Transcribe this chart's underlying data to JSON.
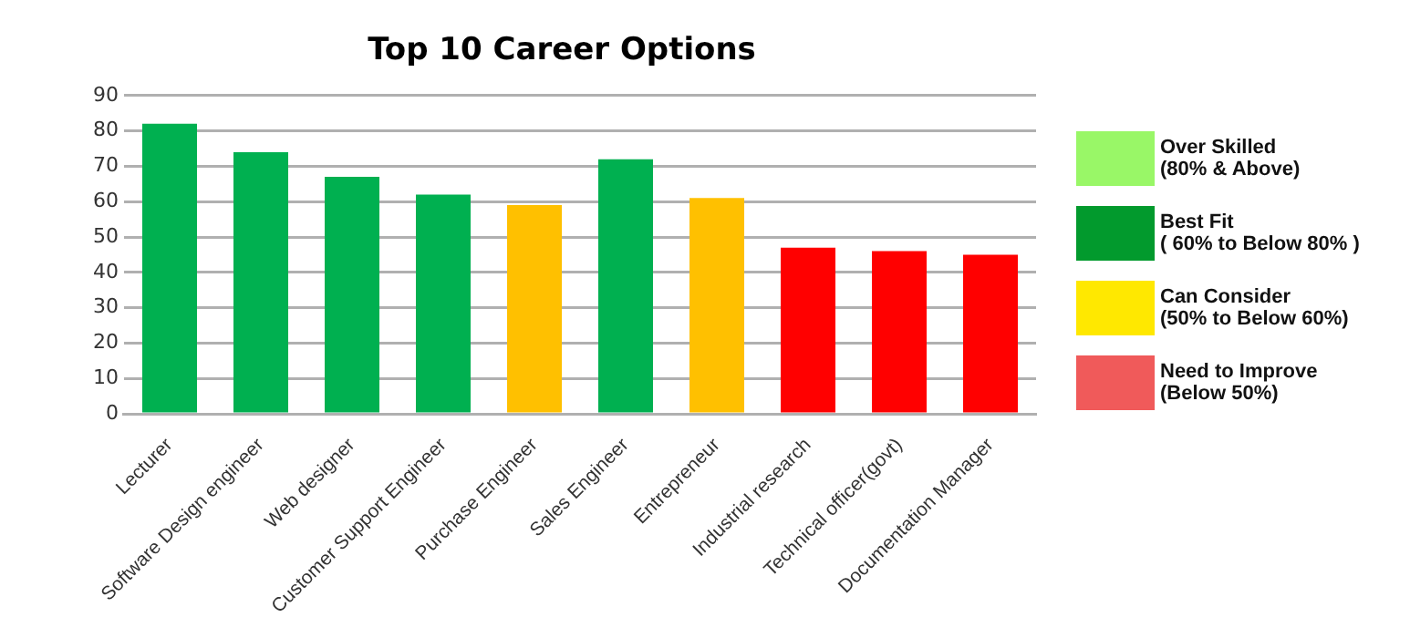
{
  "chart_data": {
    "type": "bar",
    "title": "Top 10 Career Options",
    "categories": [
      "Lecturer",
      "Software Design engineer",
      "Web designer",
      "Customer Support Engineer",
      "Purchase Engineer",
      "Sales Engineer",
      "Entrepreneur",
      "Industrial research",
      "Technical officer(govt)",
      "Documentation Manager"
    ],
    "values": [
      82,
      74,
      67,
      62,
      59,
      72,
      61,
      47,
      46,
      45
    ],
    "colors": [
      "#00b050",
      "#00b050",
      "#00b050",
      "#00b050",
      "#ffc000",
      "#00b050",
      "#ffc000",
      "#ff0000",
      "#ff0000",
      "#ff0000"
    ],
    "ylim": [
      0,
      90
    ],
    "yticks": [
      0,
      10,
      20,
      30,
      40,
      50,
      60,
      70,
      80,
      90
    ],
    "grid": "y",
    "legend": false,
    "annotations": [
      "Over Skilled\n(80% & Above)",
      "Best Fit\n( 60% to Below 80% )",
      "Can Consider\n(50% to Below 60%)",
      "Need to Improve\n(Below 50%)"
    ]
  }
}
